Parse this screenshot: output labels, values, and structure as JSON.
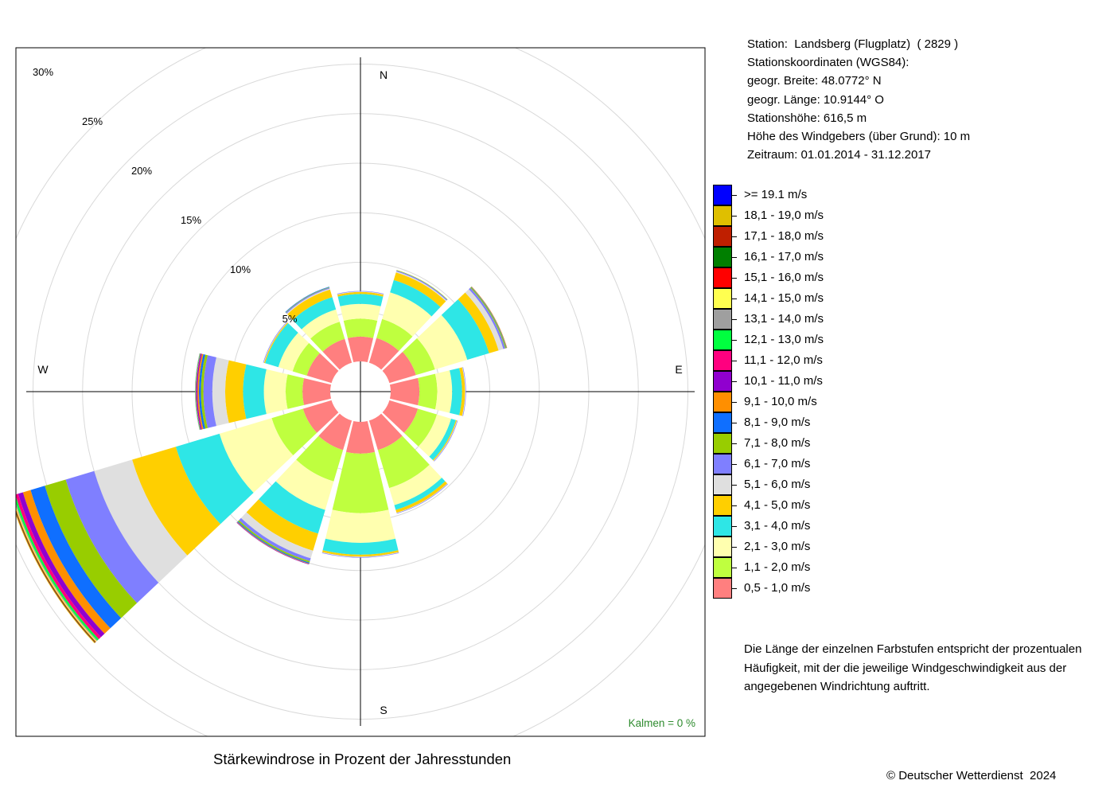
{
  "chart_data": {
    "type": "wind-rose",
    "title": "Stärkewindrose in Prozent der Jahresstunden",
    "directions": [
      "N",
      "NNE",
      "ENE",
      "E",
      "ESE",
      "SSE",
      "S",
      "SSW",
      "WSW",
      "W",
      "WNW",
      "NNW"
    ],
    "direction_angles_deg": [
      0,
      30,
      60,
      90,
      120,
      150,
      180,
      210,
      240,
      270,
      300,
      330
    ],
    "compass_labels": [
      "N",
      "E",
      "S",
      "W"
    ],
    "radial_ticks": [
      "5%",
      "10%",
      "15%",
      "20%",
      "25%",
      "30%"
    ],
    "radial_tick_values": [
      5,
      10,
      15,
      20,
      25,
      30
    ],
    "rmax": 30,
    "calm_label": "Kalmen  =  0 %",
    "series": [
      {
        "name": "0,5 - 1,0 m/s",
        "color": "#ff7f7f",
        "values": [
          2.5,
          2.6,
          2.8,
          2.9,
          3.0,
          3.1,
          3.2,
          3.1,
          3.0,
          2.8,
          2.6,
          2.5
        ]
      },
      {
        "name": "1,1 - 2,0 m/s",
        "color": "#bfff3f",
        "values": [
          1.8,
          2.0,
          2.0,
          1.8,
          2.0,
          4.0,
          6.0,
          3.3,
          3.3,
          1.7,
          1.5,
          1.8
        ]
      },
      {
        "name": "2,1 - 3,0 m/s",
        "color": "#ffffaf",
        "values": [
          1.5,
          2.8,
          3.4,
          1.5,
          1.5,
          1.8,
          3.0,
          3.0,
          5.5,
          2.2,
          1.5,
          1.3
        ]
      },
      {
        "name": "3,1 - 4,0 m/s",
        "color": "#2ee6e6",
        "values": [
          1.0,
          1.3,
          2.3,
          1.0,
          0.5,
          0.5,
          1.2,
          2.5,
          4.6,
          2.1,
          1.4,
          1.3
        ]
      },
      {
        "name": "4,1 - 5,0 m/s",
        "color": "#ffcf00",
        "values": [
          0.2,
          0.8,
          1.0,
          0.3,
          0.1,
          0.3,
          0.2,
          1.8,
          4.6,
          1.8,
          0.1,
          0.8
        ]
      },
      {
        "name": "5,1 - 6,0 m/s",
        "color": "#dfdfdf",
        "values": [
          0.05,
          0.1,
          0.5,
          0.05,
          0.05,
          0.05,
          0.05,
          0.8,
          4.0,
          1.3,
          0.05,
          0.1
        ]
      },
      {
        "name": "6,1 - 7,0 m/s",
        "color": "#7f7fff",
        "values": [
          0.05,
          0.1,
          0.2,
          0.05,
          0.05,
          0.05,
          0.05,
          0.3,
          3.0,
          0.9,
          0.05,
          0.1
        ]
      },
      {
        "name": "7,1 - 8,0 m/s",
        "color": "#98cd00",
        "values": [
          0.0,
          0.05,
          0.1,
          0.0,
          0.0,
          0.0,
          0.0,
          0.15,
          2.2,
          0.25,
          0.0,
          0.05
        ]
      },
      {
        "name": "8,1 - 9,0 m/s",
        "color": "#0f6fff",
        "values": [
          0.0,
          0.0,
          0.05,
          0.0,
          0.0,
          0.0,
          0.0,
          0.1,
          1.5,
          0.2,
          0.0,
          0.05
        ]
      },
      {
        "name": "9,1 - 10,0 m/s",
        "color": "#ff8f00",
        "values": [
          0.0,
          0.0,
          0.05,
          0.0,
          0.0,
          0.0,
          0.0,
          0.05,
          0.8,
          0.15,
          0.0,
          0.0
        ]
      },
      {
        "name": "10,1 - 11,0 m/s",
        "color": "#9000cf",
        "values": [
          0.0,
          0.0,
          0.0,
          0.0,
          0.0,
          0.0,
          0.0,
          0.05,
          0.5,
          0.1,
          0.0,
          0.0
        ]
      },
      {
        "name": "11,1 - 12,0 m/s",
        "color": "#ff007f",
        "values": [
          0.0,
          0.0,
          0.0,
          0.0,
          0.0,
          0.0,
          0.0,
          0.0,
          0.3,
          0.05,
          0.0,
          0.0
        ]
      },
      {
        "name": "12,1 - 13,0 m/s",
        "color": "#00ff3f",
        "values": [
          0.0,
          0.0,
          0.0,
          0.0,
          0.0,
          0.0,
          0.0,
          0.0,
          0.2,
          0.05,
          0.0,
          0.0
        ]
      },
      {
        "name": "13,1 - 14,0 m/s",
        "color": "#9f9f9f",
        "values": [
          0.0,
          0.0,
          0.0,
          0.0,
          0.0,
          0.0,
          0.0,
          0.0,
          0.1,
          0.05,
          0.0,
          0.0
        ]
      },
      {
        "name": "14,1 - 15,0 m/s",
        "color": "#ffff50",
        "values": [
          0.0,
          0.0,
          0.0,
          0.0,
          0.0,
          0.0,
          0.0,
          0.0,
          0.1,
          0.0,
          0.0,
          0.0
        ]
      },
      {
        "name": "15,1 - 16,0 m/s",
        "color": "#ff0000",
        "values": [
          0.0,
          0.0,
          0.0,
          0.0,
          0.0,
          0.0,
          0.0,
          0.0,
          0.05,
          0.0,
          0.0,
          0.0
        ]
      },
      {
        "name": "16,1 - 17,0 m/s",
        "color": "#007f00",
        "values": [
          0.0,
          0.0,
          0.0,
          0.0,
          0.0,
          0.0,
          0.0,
          0.0,
          0.05,
          0.0,
          0.0,
          0.0
        ]
      },
      {
        "name": "17,1 - 18,0 m/s",
        "color": "#bf1f00",
        "values": [
          0.0,
          0.0,
          0.0,
          0.0,
          0.0,
          0.0,
          0.0,
          0.0,
          0.05,
          0.0,
          0.0,
          0.0
        ]
      },
      {
        "name": "18,1 - 19,0 m/s",
        "color": "#dfbf00",
        "values": [
          0.0,
          0.0,
          0.0,
          0.0,
          0.0,
          0.0,
          0.0,
          0.0,
          0.05,
          0.0,
          0.0,
          0.0
        ]
      },
      {
        "name": ">= 19.1 m/s",
        "color": "#0000ff",
        "values": [
          0.0,
          0.0,
          0.0,
          0.0,
          0.0,
          0.0,
          0.0,
          0.0,
          0.0,
          0.0,
          0.0,
          0.0
        ]
      }
    ]
  },
  "station_info": [
    "Station:  Landsberg (Flugplatz)  ( 2829 )",
    "Stationskoordinaten (WGS84):",
    "geogr. Breite: 48.0772° N",
    "geogr. Länge: 10.9144° O",
    "Stationshöhe: 616,5 m",
    "Höhe des Windgebers (über Grund): 10 m",
    "Zeitraum: 01.01.2014 - 31.12.2017"
  ],
  "note_lines": [
    "Die Länge der einzelnen Farbstufen entspricht der prozentualen",
    "Häufigkeit, mit der die jeweilige Windgeschwindigkeit aus der",
    "angegebenen Windrichtung auftritt."
  ],
  "copyright": "© Deutscher Wetterdienst  2024"
}
